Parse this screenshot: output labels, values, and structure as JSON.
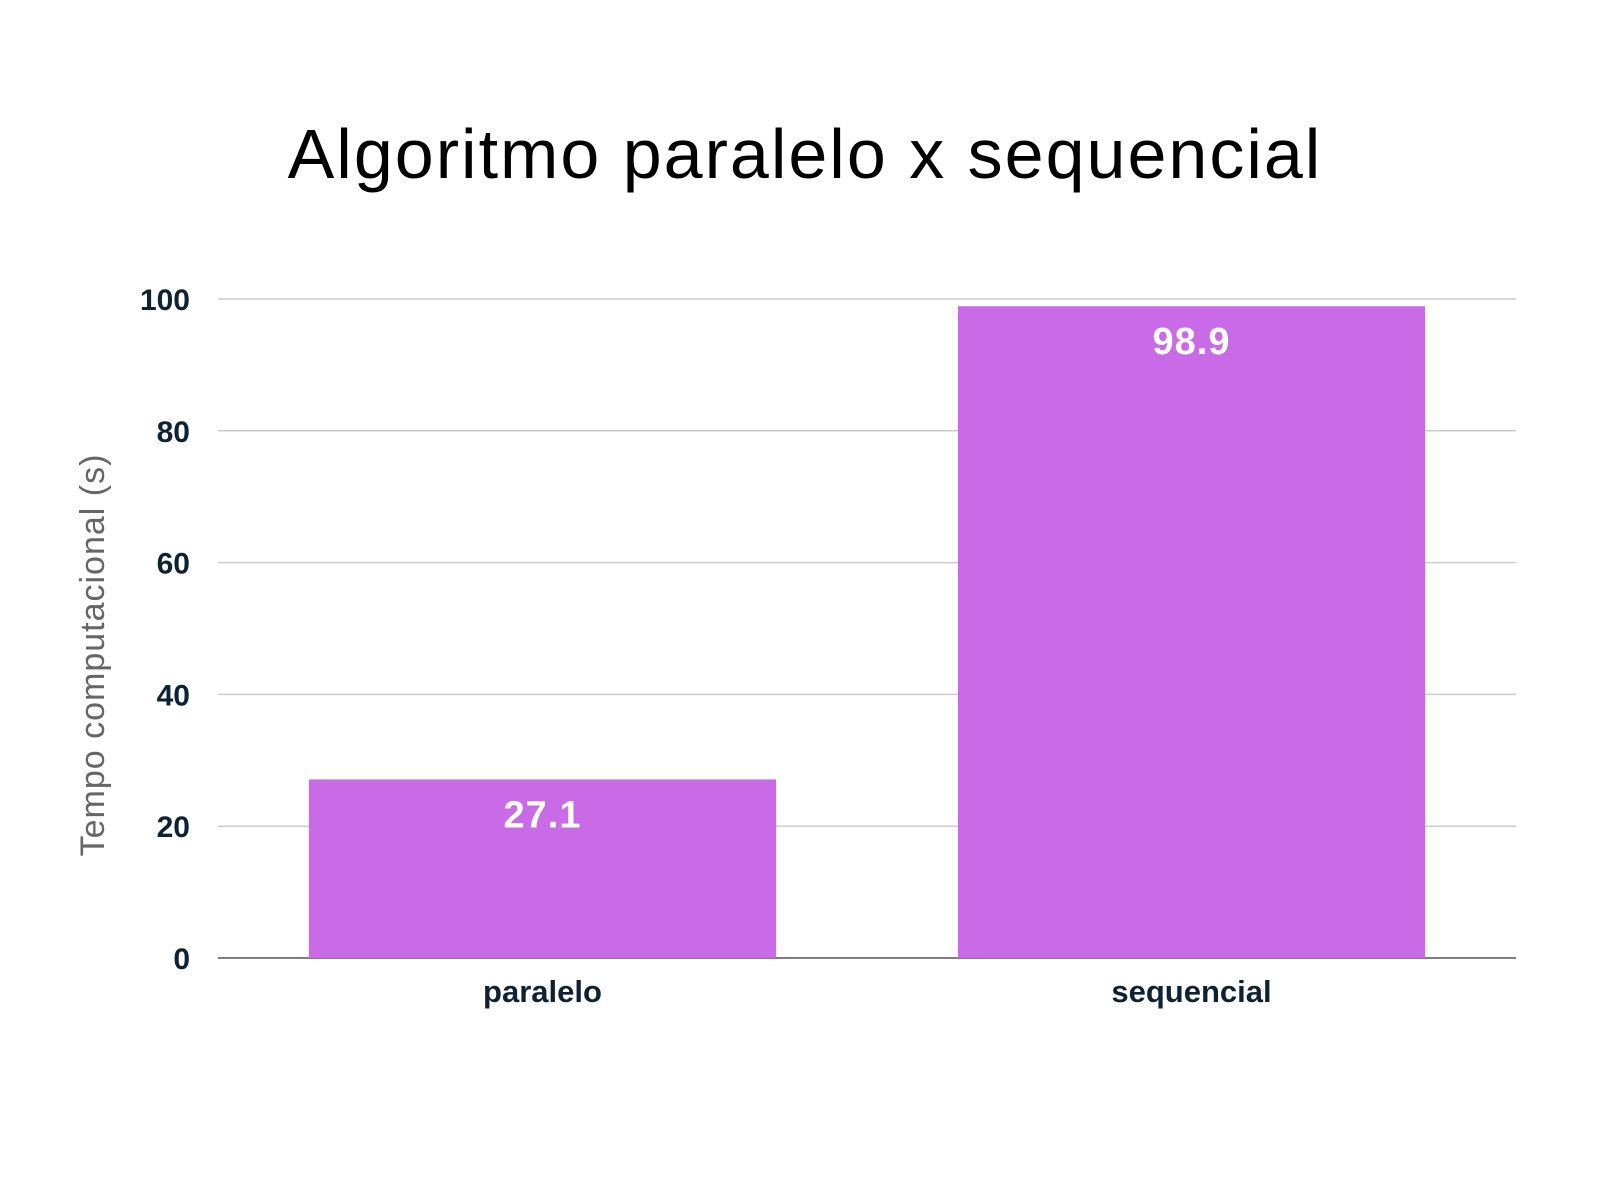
{
  "chart_data": {
    "type": "bar",
    "title": "Algoritmo paralelo x sequencial",
    "ylabel": "Tempo computacional (s)",
    "xlabel": "",
    "categories": [
      "paralelo",
      "sequencial"
    ],
    "values": [
      27.1,
      98.9
    ],
    "data_labels": [
      "27.1",
      "98.9"
    ],
    "ylim": [
      0,
      100
    ],
    "yticks": [
      0,
      20,
      40,
      60,
      80,
      100
    ],
    "grid": true,
    "legend": "none",
    "bar_color": "#c96ae6"
  }
}
